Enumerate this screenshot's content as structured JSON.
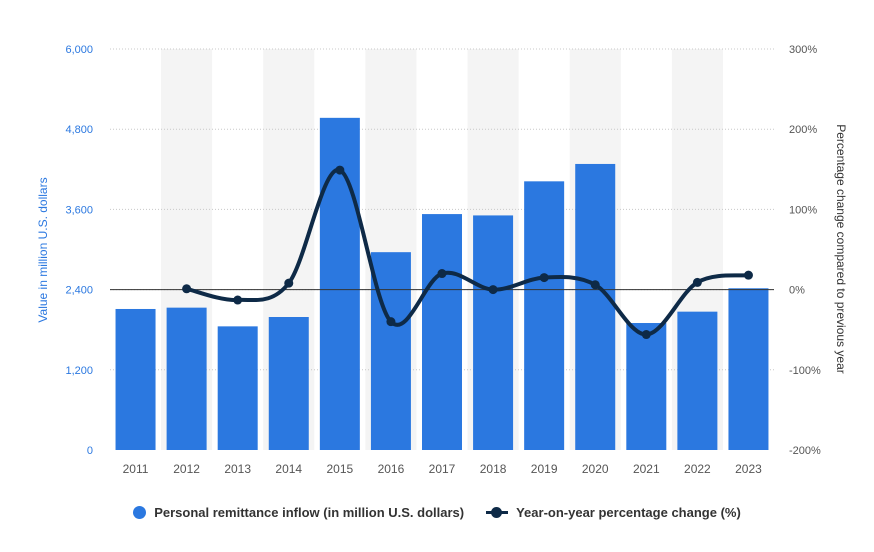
{
  "chart_data": {
    "type": "bar+line",
    "categories": [
      "2011",
      "2012",
      "2013",
      "2014",
      "2015",
      "2016",
      "2017",
      "2018",
      "2019",
      "2020",
      "2021",
      "2022",
      "2023"
    ],
    "series": [
      {
        "name": "Personal remittance inflow (in million U.S. dollars)",
        "type": "bar",
        "axis": "left",
        "values": [
          2110,
          2130,
          1850,
          1990,
          4970,
          2960,
          3530,
          3510,
          4020,
          4280,
          1900,
          2070,
          2420
        ]
      },
      {
        "name": "Year-on-year percentage change (%)",
        "type": "line",
        "axis": "right",
        "values": [
          null,
          1,
          -13,
          8,
          149,
          -40,
          20,
          0,
          15,
          6,
          -56,
          9,
          18
        ]
      }
    ],
    "ylabel": "Value in million U.S. dollars",
    "ylim": [
      0,
      6000
    ],
    "yticks": [
      "0",
      "1,200",
      "2,400",
      "3,600",
      "4,800",
      "6,000"
    ],
    "ylabel_right": "Percentage change compared to previous year",
    "ylim_right": [
      -200,
      300
    ],
    "yticks_right": [
      "-200%",
      "-100%",
      "0%",
      "100%",
      "200%",
      "300%"
    ],
    "grid": true,
    "legend_position": "bottom"
  },
  "colors": {
    "bar": "#2b78e0",
    "line": "#0e2a47",
    "grid": "#c8c8c8",
    "left_axis_text": "#2b78e0",
    "tick_text": "#555555",
    "band": "#f4f4f4"
  },
  "legend": {
    "bar_label": "Personal remittance inflow (in million U.S. dollars)",
    "line_label": "Year-on-year percentage change (%)"
  }
}
